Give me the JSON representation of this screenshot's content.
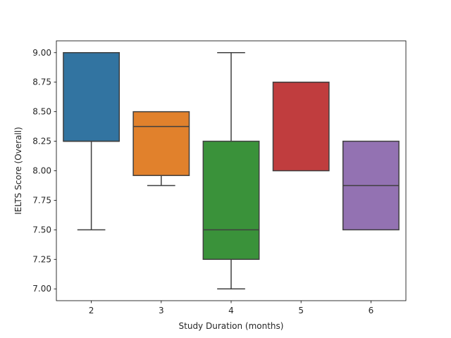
{
  "chart_data": {
    "type": "box",
    "title": "",
    "xlabel": "Study Duration (months)",
    "ylabel": "IELTS Score (Overall)",
    "ylim": [
      6.9,
      9.1
    ],
    "yticks": [
      "7.00",
      "7.25",
      "7.50",
      "7.75",
      "8.00",
      "8.25",
      "8.50",
      "8.75",
      "9.00"
    ],
    "grid": false,
    "categories": [
      "2",
      "3",
      "4",
      "5",
      "6"
    ],
    "boxes": [
      {
        "category": "2",
        "whisker_low": 7.5,
        "q1": 8.25,
        "median": 8.25,
        "q3": 9.0,
        "whisker_high": 9.0,
        "color": "#3274a1"
      },
      {
        "category": "3",
        "whisker_low": 7.875,
        "q1": 7.96,
        "median": 8.375,
        "q3": 8.5,
        "whisker_high": 8.5,
        "color": "#e1812c"
      },
      {
        "category": "4",
        "whisker_low": 7.0,
        "q1": 7.25,
        "median": 7.5,
        "q3": 8.25,
        "whisker_high": 9.0,
        "color": "#3a923a"
      },
      {
        "category": "5",
        "whisker_low": 8.0,
        "q1": 8.0,
        "median": 8.75,
        "q3": 8.75,
        "whisker_high": 8.75,
        "color": "#c03d3e"
      },
      {
        "category": "6",
        "whisker_low": 7.5,
        "q1": 7.5,
        "median": 7.875,
        "q3": 8.25,
        "whisker_high": 8.25,
        "color": "#9372b2"
      }
    ]
  }
}
